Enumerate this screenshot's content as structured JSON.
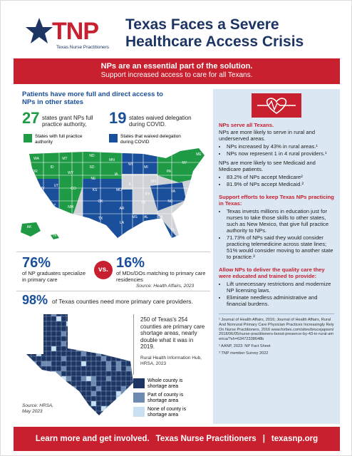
{
  "header": {
    "logo": "TNP",
    "logo_sub": "Texas Nurse Practitioners",
    "title": [
      "Texas Faces a Severe",
      "Healthcare Access Crisis"
    ]
  },
  "banner": {
    "headline": "NPs are an essential part of the solution.",
    "sub": "Support increased access to care for all Texans."
  },
  "access": {
    "heading": "Patients have more full and direct access to NPs in other states",
    "stat1": {
      "number": "27",
      "text": "states grant NPs full practice authority,"
    },
    "stat2": {
      "number": "19",
      "text": "states waived delegation during COVID."
    },
    "legend": [
      "States with full practice authority",
      "States that waived delegation during COVID"
    ],
    "state_labels": [
      "WA",
      "OR",
      "MT",
      "ND",
      "MN",
      "ID",
      "WY",
      "SD",
      "NV",
      "UT",
      "CO",
      "NE",
      "KS",
      "CA",
      "AZ",
      "NM",
      "OK",
      "TX",
      "IA",
      "WI",
      "MI",
      "IL",
      "MO",
      "OH",
      "PA",
      "NY",
      "KY",
      "TN",
      "AR",
      "LA",
      "MS",
      "AL",
      "GA",
      "NC",
      "VA",
      "FL",
      "ME",
      "AK",
      "HI"
    ]
  },
  "comparison": {
    "stat1": "76%",
    "text1": "of NP graduates specialize in primary care",
    "vs": "vs.",
    "stat2": "16%",
    "text2": "of MDs/DOs matching to primary care residencies",
    "source": "Source: Health Affairs, 2023"
  },
  "counties": {
    "stat": "98%",
    "text": "of Texas counties need more primary care providers.",
    "detail": "250 of Texas's 254 counties are primary care shortage areas, nearly double what it was in 2019.",
    "detail_source": "Rural Health Information Hub, HRSA, 2023",
    "legend": [
      "Whole county is shortage area",
      "Part of county is shortage area",
      "None of county is shortage area"
    ],
    "source": "Source: HRSA, May 2023"
  },
  "panel": {
    "sections": [
      {
        "heading": "NPs serve all Texans.",
        "blocks": [
          {
            "text": "NPs are more likely to serve in rural and underserved areas.",
            "bullets": [
              "NPs increased by 43% in rural areas.¹",
              "NPs now represent 1 in 4 rural providers.¹"
            ]
          },
          {
            "text": "NPs are more likely to see Medicaid and Medicare patients.",
            "bullets": [
              "83.2% of NPs accept Medicare²",
              "81.9% of NPs accept Medicaid.²"
            ]
          }
        ]
      },
      {
        "heading": "Support efforts to keep Texas NPs practicing in Texas:",
        "blocks": [
          {
            "bullets": [
              "Texas invests millions in education just for nurses to take those skills to other states, such as New Mexico, that give full practice authority to NPs.",
              "71.73% of NPs said they would consider practicing telemedicine across state lines; 51% would consider moving to another state to practice.³"
            ]
          }
        ]
      },
      {
        "heading": "Allow NPs to deliver the quality care they were educated and trained to provide:",
        "blocks": [
          {
            "bullets": [
              "Lift unnecessary restrictions and modernize NP licensing laws.",
              "Eliminate needless administrative and financial burdens."
            ]
          }
        ]
      }
    ],
    "footnotes": [
      "¹ Journal of Health Affairs, 2016; Journal of Health Affairs, Rural And Nonrural Primary Care Physician Practices Increasingly Rely On Nurse Practitioners, 2016 www.forbes.com/sites/brucejapsen/2018/06/05/nurse-practitioners-boost-presence-by-43-in-rural-america/?sh=63472338648b",
      "² AANP, 2023: NP Fact Sheet",
      "³ TNP member Survey 2022"
    ]
  },
  "footer": {
    "cta": "Learn more and get involved.",
    "org": "Texas Nurse Practitioners",
    "separator": "|",
    "url": "texasnp.org"
  }
}
